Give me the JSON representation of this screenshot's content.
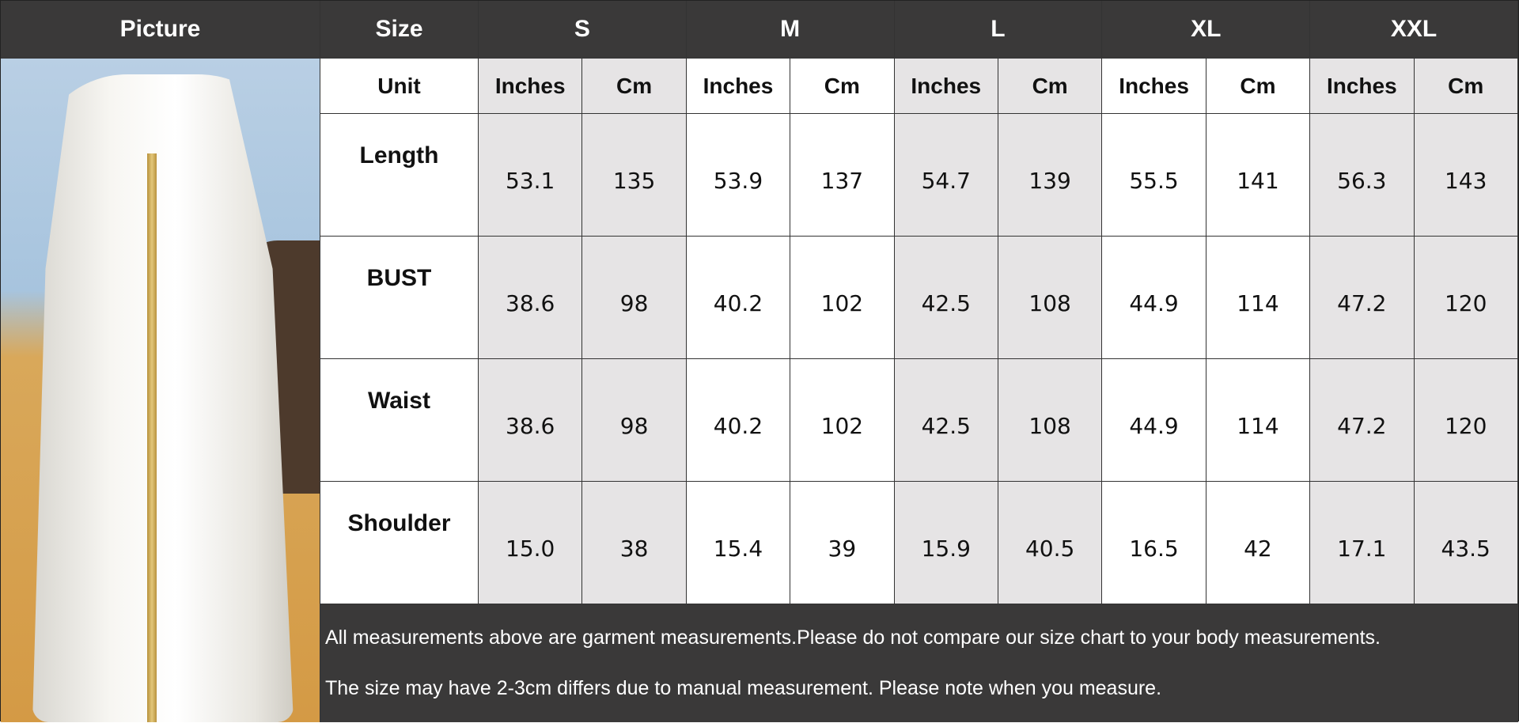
{
  "header": {
    "picture": "Picture",
    "size": "Size",
    "sizes": [
      "S",
      "M",
      "L",
      "XL",
      "XXL"
    ]
  },
  "unit_row": {
    "label": "Unit",
    "units": [
      "Inches",
      "Cm"
    ]
  },
  "rows": [
    {
      "label": "Length",
      "values": [
        "53.1",
        "135",
        "53.9",
        "137",
        "54.7",
        "139",
        "55.5",
        "141",
        "56.3",
        "143"
      ]
    },
    {
      "label": "BUST",
      "values": [
        "38.6",
        "98",
        "40.2",
        "102",
        "42.5",
        "108",
        "44.9",
        "114",
        "47.2",
        "120"
      ]
    },
    {
      "label": "Waist",
      "values": [
        "38.6",
        "98",
        "40.2",
        "102",
        "42.5",
        "108",
        "44.9",
        "114",
        "47.2",
        "120"
      ]
    },
    {
      "label": "Shoulder",
      "values": [
        "15.0",
        "38",
        "15.4",
        "39",
        "15.9",
        "40.5",
        "16.5",
        "42",
        "17.1",
        "43.5"
      ]
    }
  ],
  "notes": [
    "All measurements above are garment measurements.Please do not compare our size chart to your body measurements.",
    "The size may have 2-3cm differs due to manual measurement. Please note when you measure."
  ],
  "colors": {
    "header_bg": "#3a3939",
    "gray_cell": "#e6e4e5"
  }
}
